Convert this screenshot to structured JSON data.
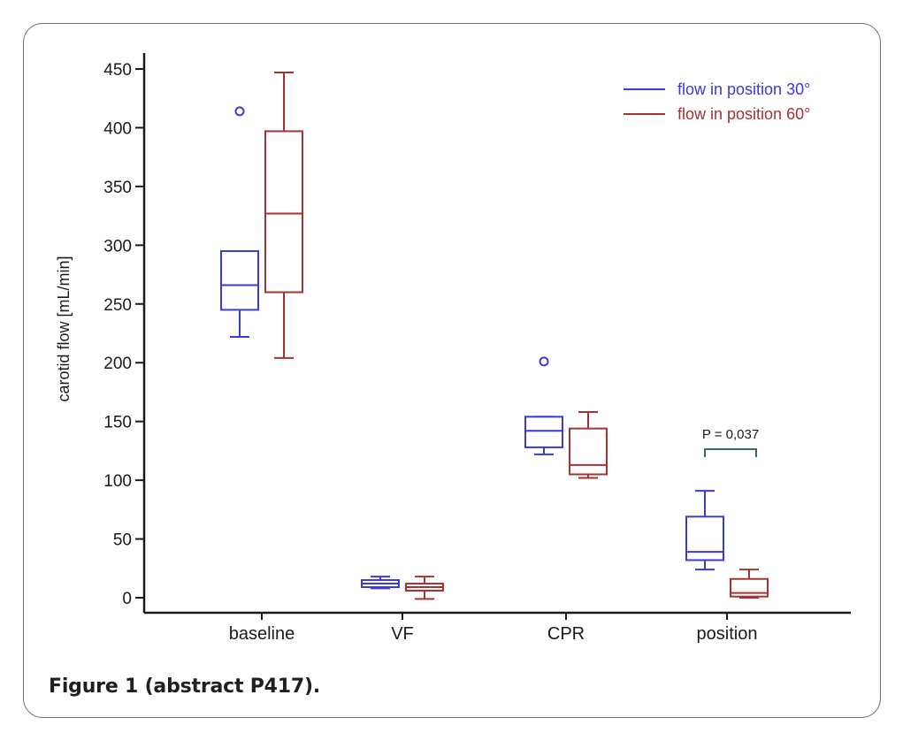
{
  "figure": {
    "caption": "Figure 1 (abstract P417)."
  },
  "chart_data": {
    "type": "box",
    "title": "",
    "xlabel": "",
    "ylabel": "carotid flow [mL/min]",
    "ylim": [
      0,
      450
    ],
    "yticks": [
      0,
      50,
      100,
      150,
      200,
      250,
      300,
      350,
      400,
      450
    ],
    "ytick_labels": [
      "0",
      "50",
      "100",
      "150",
      "200",
      "250",
      "300",
      "350",
      "400",
      "450"
    ],
    "categories": [
      "baseline",
      "VF",
      "CPR",
      "position"
    ],
    "grid": false,
    "legend_position": "top-right",
    "series": [
      {
        "name": "flow in position 30°",
        "color": "#3a3ad8",
        "boxes": [
          {
            "whisker_low": 222,
            "q1": 245,
            "median": 266,
            "q3": 295,
            "whisker_high": 295,
            "outliers": [
              414
            ]
          },
          {
            "whisker_low": 8,
            "q1": 9,
            "median": 12,
            "q3": 15,
            "whisker_high": 18,
            "outliers": []
          },
          {
            "whisker_low": 122,
            "q1": 128,
            "median": 142,
            "q3": 154,
            "whisker_high": 154,
            "outliers": [
              201
            ]
          },
          {
            "whisker_low": 24,
            "q1": 32,
            "median": 39,
            "q3": 69,
            "whisker_high": 91,
            "outliers": []
          }
        ]
      },
      {
        "name": "flow in position 60°",
        "color": "#a83232",
        "boxes": [
          {
            "whisker_low": 204,
            "q1": 260,
            "median": 327,
            "q3": 397,
            "whisker_high": 447,
            "outliers": []
          },
          {
            "whisker_low": -1,
            "q1": 6,
            "median": 9,
            "q3": 12,
            "whisker_high": 18,
            "outliers": []
          },
          {
            "whisker_low": 102,
            "q1": 105,
            "median": 113,
            "q3": 144,
            "whisker_high": 158,
            "outliers": []
          },
          {
            "whisker_low": 0,
            "q1": 1,
            "median": 4,
            "q3": 16,
            "whisker_high": 24,
            "outliers": []
          }
        ]
      }
    ],
    "annotations": [
      {
        "category": "position",
        "text": "P = 0,037"
      }
    ]
  }
}
